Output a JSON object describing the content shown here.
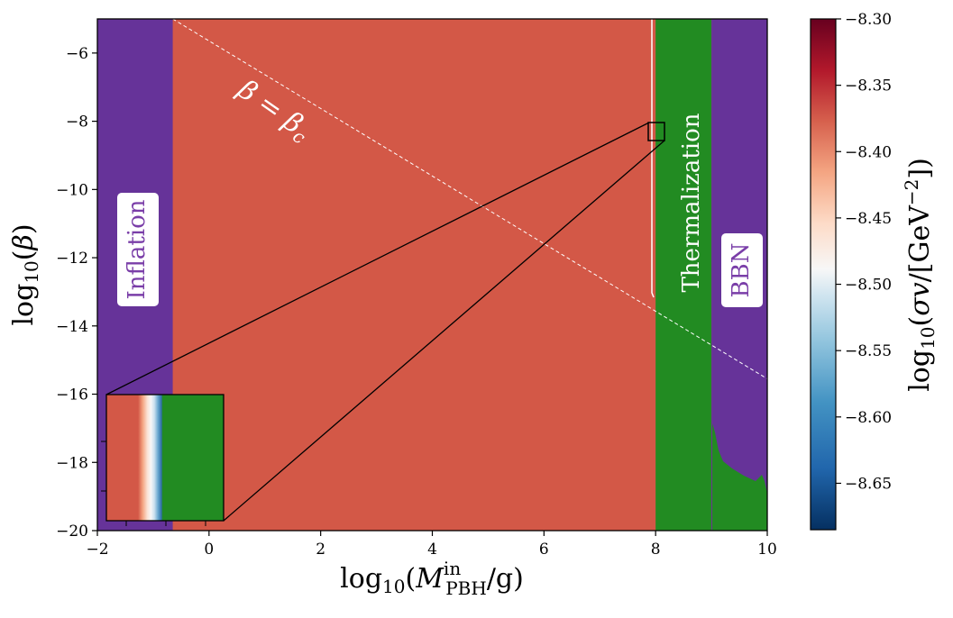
{
  "chart_data": {
    "type": "heatmap",
    "xlabel": "log10(M_PBH^in/g)",
    "ylabel": "log10(β)",
    "xlim": [
      -2,
      10
    ],
    "ylim": [
      -20,
      -5
    ],
    "x_ticks": [
      -2,
      0,
      2,
      4,
      6,
      8,
      10
    ],
    "x_tick_labels": [
      "−2",
      "0",
      "2",
      "4",
      "6",
      "8",
      "10"
    ],
    "y_ticks": [
      -6,
      -8,
      -10,
      -12,
      -14,
      -16,
      -18,
      -20
    ],
    "y_tick_labels": [
      "−6",
      "−8",
      "−10",
      "−12",
      "−14",
      "−16",
      "−18",
      "−20"
    ],
    "colorbar": {
      "label": "log10(σv/[GeV⁻²])",
      "range": [
        -8.685,
        -8.3
      ],
      "ticks": [
        -8.3,
        -8.35,
        -8.4,
        -8.45,
        -8.5,
        -8.55,
        -8.6,
        -8.65
      ],
      "tick_labels": [
        "−8.30",
        "−8.35",
        "−8.40",
        "−8.45",
        "−8.50",
        "−8.55",
        "−8.60",
        "−8.65"
      ],
      "colormap": "RdBu_r"
    },
    "regions": [
      {
        "label": "Inflation",
        "x_range": [
          -2,
          -0.65
        ],
        "color": "#663399",
        "text_color": "#7a3ea8"
      },
      {
        "label": "Thermalization",
        "x_range": [
          8.0,
          9.0
        ],
        "color": "#228b22",
        "text_color": "#ffffff"
      },
      {
        "label": "BBN",
        "x_range": [
          9.0,
          10
        ],
        "color": "#663399",
        "text_color": "#7a3ea8"
      }
    ],
    "main_region_value": -8.385,
    "critical_line": {
      "label": "β = β_c",
      "points": [
        [
          -0.65,
          -5.0
        ],
        [
          10,
          -15.55
        ]
      ]
    },
    "zoom_box": {
      "x_range": [
        7.9,
        8.15
      ],
      "y_range": [
        -8.5,
        -8.0
      ]
    }
  },
  "colors": {
    "main_fill": "#d35847",
    "purple": "#663399",
    "green": "#228b22"
  }
}
